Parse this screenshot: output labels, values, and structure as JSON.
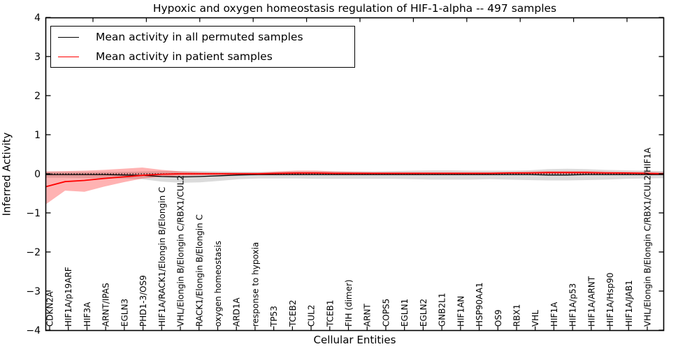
{
  "figure": {
    "title": "Hypoxic and oxygen homeostasis regulation of HIF-1-alpha -- 497 samples"
  },
  "chart_data": {
    "type": "line",
    "title": "Hypoxic and oxygen homeostasis regulation of HIF-1-alpha -- 497 samples",
    "xlabel": "Cellular Entities",
    "ylabel": "Inferred Activity",
    "ylim": [
      -4,
      4
    ],
    "grid": false,
    "legend_position": "upper left",
    "zero_line": {
      "style": "dotted",
      "color": "#000000",
      "y": 0
    },
    "ytick_values": [
      4,
      3,
      2,
      1,
      0,
      -1,
      -2,
      -3,
      -4
    ],
    "ytick_labels": [
      "4",
      "3",
      "2",
      "1",
      "0",
      "−1",
      "−2",
      "−3",
      "−4"
    ],
    "categories": [
      "CDKN2A",
      "HIF1A/p19ARF",
      "HIF3A",
      "ARNT/IPAS",
      "EGLN3",
      "PHD1-3/OS9",
      "HIF1A/RACK1/Elongin B/Elongin C",
      "VHL/Elongin B/Elongin C/RBX1/CUL2",
      "RACK1/Elongin B/Elongin C",
      "oxygen homeostasis",
      "ARD1A",
      "response to hypoxia",
      "TP53",
      "TCEB2",
      "CUL2",
      "TCEB1",
      "FIH (dimer)",
      "ARNT",
      "COPS5",
      "EGLN1",
      "EGLN2",
      "GNB2L1",
      "HIF1AN",
      "HSP90AA1",
      "OS9",
      "RBX1",
      "VHL",
      "HIF1A",
      "HIF1A/p53",
      "HIF1A/ARNT",
      "HIF1A/Hsp90",
      "HIF1A/JAB1",
      "VHL/Elongin B/Elongin C/RBX1/CUL2/HIF1A"
    ],
    "series": [
      {
        "name": "Mean activity in all permuted samples",
        "color": "#000000",
        "band_color": "#000000",
        "band_opacity": 0.14,
        "values": [
          -0.02,
          -0.02,
          -0.02,
          -0.02,
          -0.03,
          -0.04,
          -0.07,
          -0.08,
          -0.07,
          -0.05,
          -0.03,
          -0.02,
          -0.02,
          -0.02,
          -0.02,
          -0.02,
          -0.02,
          -0.02,
          -0.02,
          -0.02,
          -0.02,
          -0.02,
          -0.02,
          -0.02,
          -0.02,
          -0.02,
          -0.03,
          -0.03,
          -0.02,
          -0.02,
          -0.02,
          -0.02,
          -0.02
        ],
        "band_upper": [
          0.05,
          0.05,
          0.05,
          0.05,
          0.05,
          0.06,
          0.07,
          0.07,
          0.07,
          0.06,
          0.05,
          0.05,
          0.05,
          0.06,
          0.06,
          0.06,
          0.06,
          0.06,
          0.07,
          0.08,
          0.09,
          0.09,
          0.08,
          0.08,
          0.08,
          0.09,
          0.12,
          0.13,
          0.12,
          0.1,
          0.09,
          0.08,
          0.07
        ],
        "band_lower": [
          -0.1,
          -0.1,
          -0.11,
          -0.11,
          -0.12,
          -0.14,
          -0.2,
          -0.23,
          -0.22,
          -0.18,
          -0.14,
          -0.12,
          -0.12,
          -0.12,
          -0.13,
          -0.13,
          -0.13,
          -0.13,
          -0.13,
          -0.14,
          -0.15,
          -0.15,
          -0.15,
          -0.14,
          -0.15,
          -0.16,
          -0.17,
          -0.17,
          -0.16,
          -0.15,
          -0.13,
          -0.12,
          -0.11
        ]
      },
      {
        "name": "Mean activity in patient samples",
        "color": "#ff0000",
        "band_color": "#ff0000",
        "band_opacity": 0.3,
        "values": [
          -0.33,
          -0.2,
          -0.17,
          -0.12,
          -0.08,
          -0.04,
          -0.01,
          0.0,
          0.0,
          0.0,
          0.0,
          0.0,
          0.01,
          0.02,
          0.02,
          0.01,
          0.01,
          0.01,
          0.01,
          0.01,
          0.01,
          0.01,
          0.01,
          0.01,
          0.02,
          0.02,
          0.03,
          0.03,
          0.03,
          0.02,
          0.02,
          0.01,
          0.0
        ],
        "band_upper": [
          0.06,
          0.07,
          0.08,
          0.1,
          0.13,
          0.16,
          0.1,
          0.06,
          0.04,
          0.03,
          0.03,
          0.03,
          0.06,
          0.08,
          0.08,
          0.06,
          0.05,
          0.04,
          0.04,
          0.04,
          0.04,
          0.04,
          0.04,
          0.04,
          0.05,
          0.06,
          0.07,
          0.07,
          0.07,
          0.06,
          0.05,
          0.05,
          0.04
        ],
        "band_lower": [
          -0.78,
          -0.43,
          -0.46,
          -0.33,
          -0.22,
          -0.12,
          -0.08,
          -0.05,
          -0.04,
          -0.03,
          -0.03,
          -0.03,
          -0.03,
          -0.03,
          -0.02,
          -0.02,
          -0.01,
          -0.01,
          -0.01,
          -0.01,
          -0.01,
          -0.01,
          -0.01,
          -0.01,
          0.0,
          0.0,
          0.0,
          0.0,
          0.0,
          0.0,
          -0.01,
          -0.01,
          -0.02
        ]
      }
    ]
  }
}
